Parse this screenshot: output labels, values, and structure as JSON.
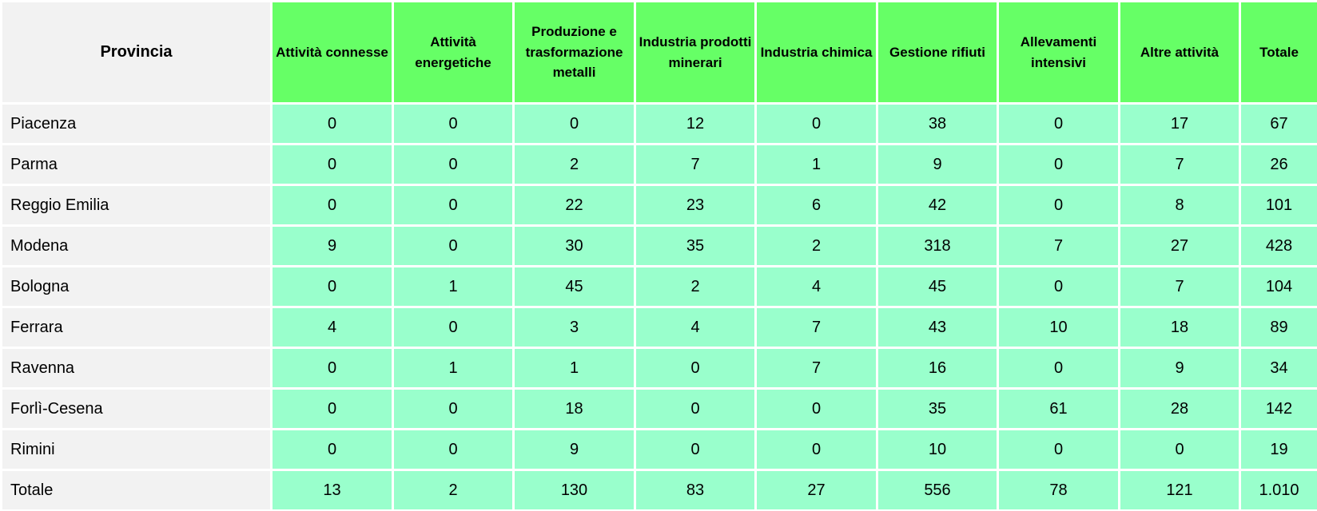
{
  "chart_data": {
    "type": "table",
    "columns": [
      "Provincia",
      "Attività connesse",
      "Attività energetiche",
      "Produzione e trasformazione metalli",
      "Industria prodotti minerari",
      "Industria chimica",
      "Gestione rifiuti",
      "Allevamenti intensivi",
      "Altre attività",
      "Totale"
    ],
    "rows": [
      [
        "Piacenza",
        0,
        0,
        0,
        12,
        0,
        38,
        0,
        17,
        67
      ],
      [
        "Parma",
        0,
        0,
        2,
        7,
        1,
        9,
        0,
        7,
        26
      ],
      [
        "Reggio Emilia",
        0,
        0,
        22,
        23,
        6,
        42,
        0,
        8,
        101
      ],
      [
        "Modena",
        9,
        0,
        30,
        35,
        2,
        318,
        7,
        27,
        428
      ],
      [
        "Bologna",
        0,
        1,
        45,
        2,
        4,
        45,
        0,
        7,
        104
      ],
      [
        "Ferrara",
        4,
        0,
        3,
        4,
        7,
        43,
        10,
        18,
        89
      ],
      [
        "Ravenna",
        0,
        1,
        1,
        0,
        7,
        16,
        0,
        9,
        34
      ],
      [
        "Forlì-Cesena",
        0,
        0,
        18,
        0,
        0,
        35,
        61,
        28,
        142
      ],
      [
        "Rimini",
        0,
        0,
        9,
        0,
        0,
        10,
        0,
        0,
        19
      ],
      [
        "Totale",
        13,
        2,
        130,
        83,
        27,
        556,
        78,
        121,
        1010
      ]
    ]
  },
  "table": {
    "header": {
      "province_label": "Provincia",
      "columns": [
        "Attività connesse",
        "Attività energetiche",
        "Produzione e trasformazione metalli",
        "Industria prodotti minerari",
        "Industria chimica",
        "Gestione rifiuti",
        "Allevamenti intensivi",
        "Altre attività",
        "Totale"
      ]
    },
    "rows": [
      {
        "label": "Piacenza",
        "values": [
          "0",
          "0",
          "0",
          "12",
          "0",
          "38",
          "0",
          "17"
        ],
        "total": "67"
      },
      {
        "label": "Parma",
        "values": [
          "0",
          "0",
          "2",
          "7",
          "1",
          "9",
          "0",
          "7"
        ],
        "total": "26"
      },
      {
        "label": "Reggio Emilia",
        "values": [
          "0",
          "0",
          "22",
          "23",
          "6",
          "42",
          "0",
          "8"
        ],
        "total": "101"
      },
      {
        "label": "Modena",
        "values": [
          "9",
          "0",
          "30",
          "35",
          "2",
          "318",
          "7",
          "27"
        ],
        "total": "428"
      },
      {
        "label": "Bologna",
        "values": [
          "0",
          "1",
          "45",
          "2",
          "4",
          "45",
          "0",
          "7"
        ],
        "total": "104"
      },
      {
        "label": "Ferrara",
        "values": [
          "4",
          "0",
          "3",
          "4",
          "7",
          "43",
          "10",
          "18"
        ],
        "total": "89"
      },
      {
        "label": "Ravenna",
        "values": [
          "0",
          "1",
          "1",
          "0",
          "7",
          "16",
          "0",
          "9"
        ],
        "total": "34"
      },
      {
        "label": "Forlì-Cesena",
        "values": [
          "0",
          "0",
          "18",
          "0",
          "0",
          "35",
          "61",
          "28"
        ],
        "total": "142"
      },
      {
        "label": "Rimini",
        "values": [
          "0",
          "0",
          "9",
          "0",
          "0",
          "10",
          "0",
          "0"
        ],
        "total": "19"
      }
    ],
    "totals_row": {
      "label": "Totale",
      "values": [
        "13",
        "2",
        "130",
        "83",
        "27",
        "556",
        "78",
        "121"
      ],
      "total": "1.010"
    }
  },
  "colors": {
    "header_green": "#66FF66",
    "cell_mint": "#99FFCC",
    "label_gray": "#F2F2F2",
    "grid_white": "#FFFFFF",
    "text": "#000000"
  }
}
